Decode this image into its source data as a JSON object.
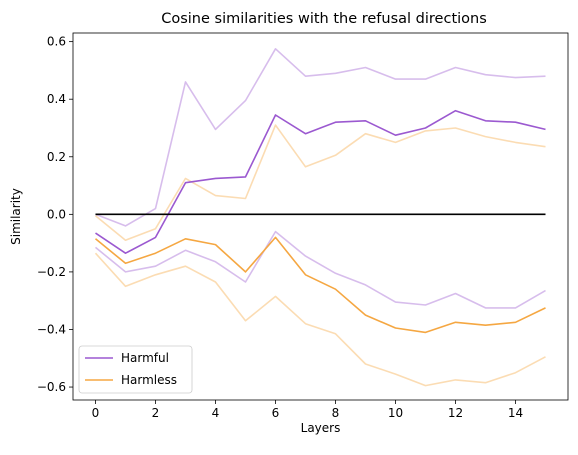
{
  "chart_data": {
    "type": "line",
    "title": "Cosine similarities with the refusal directions",
    "xlabel": "Layers",
    "ylabel": "Similarity",
    "xlim": [
      -0.75,
      15.75
    ],
    "ylim": [
      -0.645,
      0.63
    ],
    "xticks": [
      0,
      2,
      4,
      6,
      8,
      10,
      12,
      14
    ],
    "yticks": [
      -0.6,
      -0.4,
      -0.2,
      0.0,
      0.2,
      0.4,
      0.6
    ],
    "ytick_labels": [
      "−0.6",
      "−0.4",
      "−0.2",
      "0.0",
      "0.2",
      "0.4",
      "0.6"
    ],
    "grid": false,
    "legend_position": "lower-left",
    "x": [
      0,
      1,
      2,
      3,
      4,
      5,
      6,
      7,
      8,
      9,
      10,
      11,
      12,
      13,
      14,
      15
    ],
    "series": [
      {
        "name": "Harmful",
        "color": "#9b59d0",
        "opacity": 1.0,
        "values": [
          -0.065,
          -0.135,
          -0.08,
          0.11,
          0.125,
          0.13,
          0.345,
          0.28,
          0.32,
          0.325,
          0.275,
          0.3,
          0.36,
          0.325,
          0.32,
          0.295
        ]
      },
      {
        "name": "Harmless",
        "color": "#f5a742",
        "opacity": 1.0,
        "values": [
          -0.085,
          -0.17,
          -0.135,
          -0.085,
          -0.105,
          -0.2,
          -0.08,
          -0.21,
          -0.26,
          -0.35,
          -0.395,
          -0.41,
          -0.375,
          -0.385,
          -0.375,
          -0.325
        ]
      },
      {
        "color": "#9b59d0",
        "opacity": 0.4,
        "values": [
          0.0,
          -0.04,
          0.02,
          0.46,
          0.295,
          0.395,
          0.575,
          0.48,
          0.49,
          0.51,
          0.47,
          0.47,
          0.51,
          0.485,
          0.475,
          0.48
        ]
      },
      {
        "color": "#9b59d0",
        "opacity": 0.4,
        "values": [
          -0.115,
          -0.2,
          -0.18,
          -0.125,
          -0.165,
          -0.235,
          -0.06,
          -0.145,
          -0.205,
          -0.245,
          -0.305,
          -0.315,
          -0.275,
          -0.325,
          -0.325,
          -0.265
        ]
      },
      {
        "color": "#f5a742",
        "opacity": 0.4,
        "values": [
          -0.005,
          -0.09,
          -0.05,
          0.125,
          0.065,
          0.055,
          0.31,
          0.165,
          0.205,
          0.28,
          0.25,
          0.29,
          0.3,
          0.27,
          0.25,
          0.235
        ]
      },
      {
        "color": "#f5a742",
        "opacity": 0.4,
        "values": [
          -0.135,
          -0.25,
          -0.21,
          -0.18,
          -0.235,
          -0.37,
          -0.285,
          -0.38,
          -0.415,
          -0.52,
          -0.555,
          -0.595,
          -0.575,
          -0.585,
          -0.55,
          -0.495
        ]
      },
      {
        "color": "#000000",
        "opacity": 1.0,
        "values": [
          0,
          0,
          0,
          0,
          0,
          0,
          0,
          0,
          0,
          0,
          0,
          0,
          0,
          0,
          0,
          0
        ]
      }
    ]
  }
}
